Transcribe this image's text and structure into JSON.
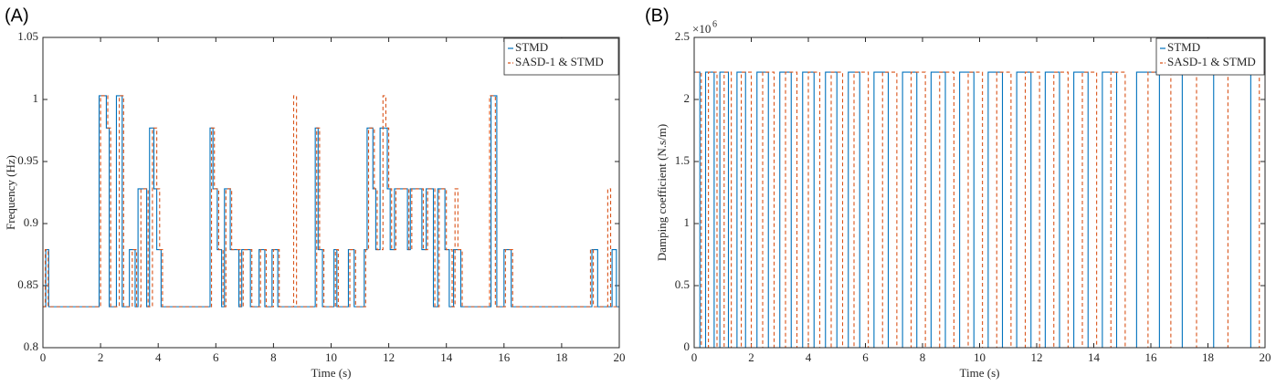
{
  "chart_data": [
    {
      "type": "line",
      "step": "post",
      "panel_label": "(A)",
      "xlabel": "Time (s)",
      "ylabel": "Frequency (Hz)",
      "xlim": [
        0,
        20
      ],
      "xticks": [
        0,
        2,
        4,
        6,
        8,
        10,
        12,
        14,
        16,
        18,
        20
      ],
      "ylim": [
        0.8,
        1.05
      ],
      "yticks": [
        0.8,
        0.85,
        0.9,
        0.95,
        1,
        1.05
      ],
      "legend": "upper right",
      "series": [
        {
          "name": "STMD",
          "color": "#0072BD",
          "dash": "solid",
          "x": [
            0,
            0.1,
            0.2,
            1.95,
            2.2,
            2.3,
            2.55,
            2.75,
            3.0,
            3.2,
            3.3,
            3.6,
            3.7,
            3.85,
            3.95,
            4.1,
            5.8,
            5.9,
            6.05,
            6.2,
            6.3,
            6.5,
            6.8,
            6.9,
            7.2,
            7.5,
            7.7,
            7.95,
            8.15,
            9.45,
            9.55,
            9.7,
            10.1,
            10.2,
            10.6,
            10.8,
            11.15,
            11.25,
            11.45,
            11.55,
            11.7,
            11.95,
            12.05,
            12.2,
            12.65,
            12.75,
            13.15,
            13.3,
            13.55,
            13.7,
            13.95,
            14.1,
            14.25,
            14.5,
            15.55,
            15.75,
            16.0,
            16.25,
            19.05,
            19.25,
            19.75,
            19.9
          ],
          "values": [
            0.833,
            0.879,
            0.833,
            1.003,
            0.977,
            0.833,
            1.003,
            0.833,
            0.879,
            0.833,
            0.928,
            0.833,
            0.977,
            0.928,
            0.879,
            0.833,
            0.977,
            0.928,
            0.879,
            0.833,
            0.928,
            0.879,
            0.833,
            0.879,
            0.833,
            0.879,
            0.833,
            0.879,
            0.833,
            0.977,
            0.879,
            0.833,
            0.879,
            0.833,
            0.879,
            0.833,
            0.879,
            0.977,
            0.928,
            0.879,
            0.977,
            0.928,
            0.879,
            0.928,
            0.879,
            0.928,
            0.879,
            0.928,
            0.833,
            0.928,
            0.879,
            0.833,
            0.879,
            0.833,
            1.003,
            0.833,
            0.879,
            0.833,
            0.879,
            0.833,
            0.879,
            0.833
          ]
        },
        {
          "name": "SASD-1 & STMD",
          "color": "#D95319",
          "dash": "dashed",
          "x": [
            0,
            0.08,
            0.18,
            2.0,
            2.25,
            2.35,
            2.65,
            2.8,
            3.1,
            3.25,
            3.4,
            3.65,
            3.8,
            3.95,
            4.05,
            4.15,
            5.85,
            5.95,
            6.1,
            6.25,
            6.35,
            6.55,
            6.85,
            6.95,
            7.25,
            7.55,
            7.75,
            8.0,
            8.2,
            8.7,
            8.8,
            9.5,
            9.6,
            9.75,
            10.15,
            10.25,
            10.65,
            10.85,
            11.2,
            11.3,
            11.5,
            11.6,
            11.8,
            11.9,
            12.0,
            12.1,
            12.25,
            12.7,
            12.8,
            13.2,
            13.35,
            13.6,
            13.75,
            14.0,
            14.2,
            14.3,
            14.4,
            14.55,
            15.5,
            15.7,
            16.05,
            16.3,
            19.0,
            19.1,
            19.6,
            19.7,
            19.8
          ],
          "values": [
            0.833,
            0.879,
            0.833,
            1.003,
            0.977,
            0.833,
            1.003,
            0.833,
            0.879,
            0.833,
            0.928,
            0.833,
            0.977,
            0.928,
            0.879,
            0.833,
            0.977,
            0.928,
            0.879,
            0.833,
            0.928,
            0.879,
            0.833,
            0.879,
            0.833,
            0.879,
            0.833,
            0.879,
            0.833,
            1.003,
            0.833,
            0.977,
            0.879,
            0.833,
            0.879,
            0.833,
            0.879,
            0.833,
            0.879,
            0.977,
            0.928,
            0.879,
            1.003,
            0.977,
            0.928,
            0.879,
            0.928,
            0.879,
            0.928,
            0.879,
            0.928,
            0.833,
            0.928,
            0.879,
            0.833,
            0.928,
            0.879,
            0.833,
            1.003,
            0.833,
            0.879,
            0.833,
            0.879,
            0.833,
            0.928,
            0.833,
            0.833
          ]
        }
      ]
    },
    {
      "type": "line",
      "step": "post",
      "panel_label": "(B)",
      "xlabel": "Time (s)",
      "ylabel": "Damping coefficient (N.s/m)",
      "y_multiplier": {
        "base": "×10",
        "exponent": "6"
      },
      "xlim": [
        0,
        20
      ],
      "xticks": [
        0,
        2,
        4,
        6,
        8,
        10,
        12,
        14,
        16,
        18,
        20
      ],
      "ylim": [
        0,
        2.5
      ],
      "yticks": [
        0,
        0.5,
        1,
        1.5,
        2,
        2.5
      ],
      "legend": "upper right",
      "series": [
        {
          "name": "STMD",
          "color": "#0072BD",
          "dash": "solid",
          "x": [
            0,
            0.2,
            0.4,
            0.7,
            0.9,
            1.2,
            1.5,
            1.8,
            2.2,
            2.6,
            3.0,
            3.4,
            3.8,
            4.2,
            4.6,
            5.0,
            5.4,
            5.8,
            6.3,
            6.8,
            7.3,
            7.8,
            8.3,
            8.8,
            9.3,
            9.8,
            10.3,
            10.8,
            11.3,
            11.8,
            12.3,
            12.8,
            13.3,
            13.8,
            14.3,
            14.8,
            15.5,
            16.3,
            17.1,
            18.2,
            19.5
          ],
          "values": [
            2.22,
            0,
            2.22,
            0,
            2.22,
            0,
            2.22,
            0,
            2.22,
            0,
            2.22,
            0,
            2.22,
            0,
            2.22,
            0,
            2.22,
            0,
            2.22,
            0,
            2.22,
            0,
            2.22,
            0,
            2.22,
            0,
            2.22,
            0,
            2.22,
            0,
            2.22,
            0,
            2.22,
            0,
            2.22,
            0,
            2.22,
            0,
            2.22,
            0,
            2.22
          ]
        },
        {
          "name": "SASD-1 & STMD",
          "color": "#D95319",
          "dash": "dashed",
          "x": [
            0.05,
            0.25,
            0.5,
            0.8,
            1.05,
            1.3,
            1.65,
            2.0,
            2.4,
            2.8,
            3.2,
            3.6,
            4.0,
            4.4,
            4.8,
            5.2,
            5.6,
            6.1,
            6.6,
            7.1,
            7.6,
            8.1,
            8.6,
            9.1,
            9.6,
            10.1,
            10.6,
            11.1,
            11.6,
            12.1,
            12.6,
            13.1,
            13.6,
            14.1,
            14.6,
            15.1,
            15.9,
            16.7,
            17.6,
            18.7,
            19.8
          ],
          "values": [
            2.22,
            0,
            2.22,
            0,
            2.22,
            0,
            2.22,
            0,
            2.22,
            0,
            2.22,
            0,
            2.22,
            0,
            2.22,
            0,
            2.22,
            0,
            2.22,
            0,
            2.22,
            0,
            2.22,
            0,
            2.22,
            0,
            2.22,
            0,
            2.22,
            0,
            2.22,
            0,
            2.22,
            0,
            2.22,
            0,
            2.22,
            0,
            2.22,
            0,
            2.22
          ]
        }
      ]
    }
  ]
}
